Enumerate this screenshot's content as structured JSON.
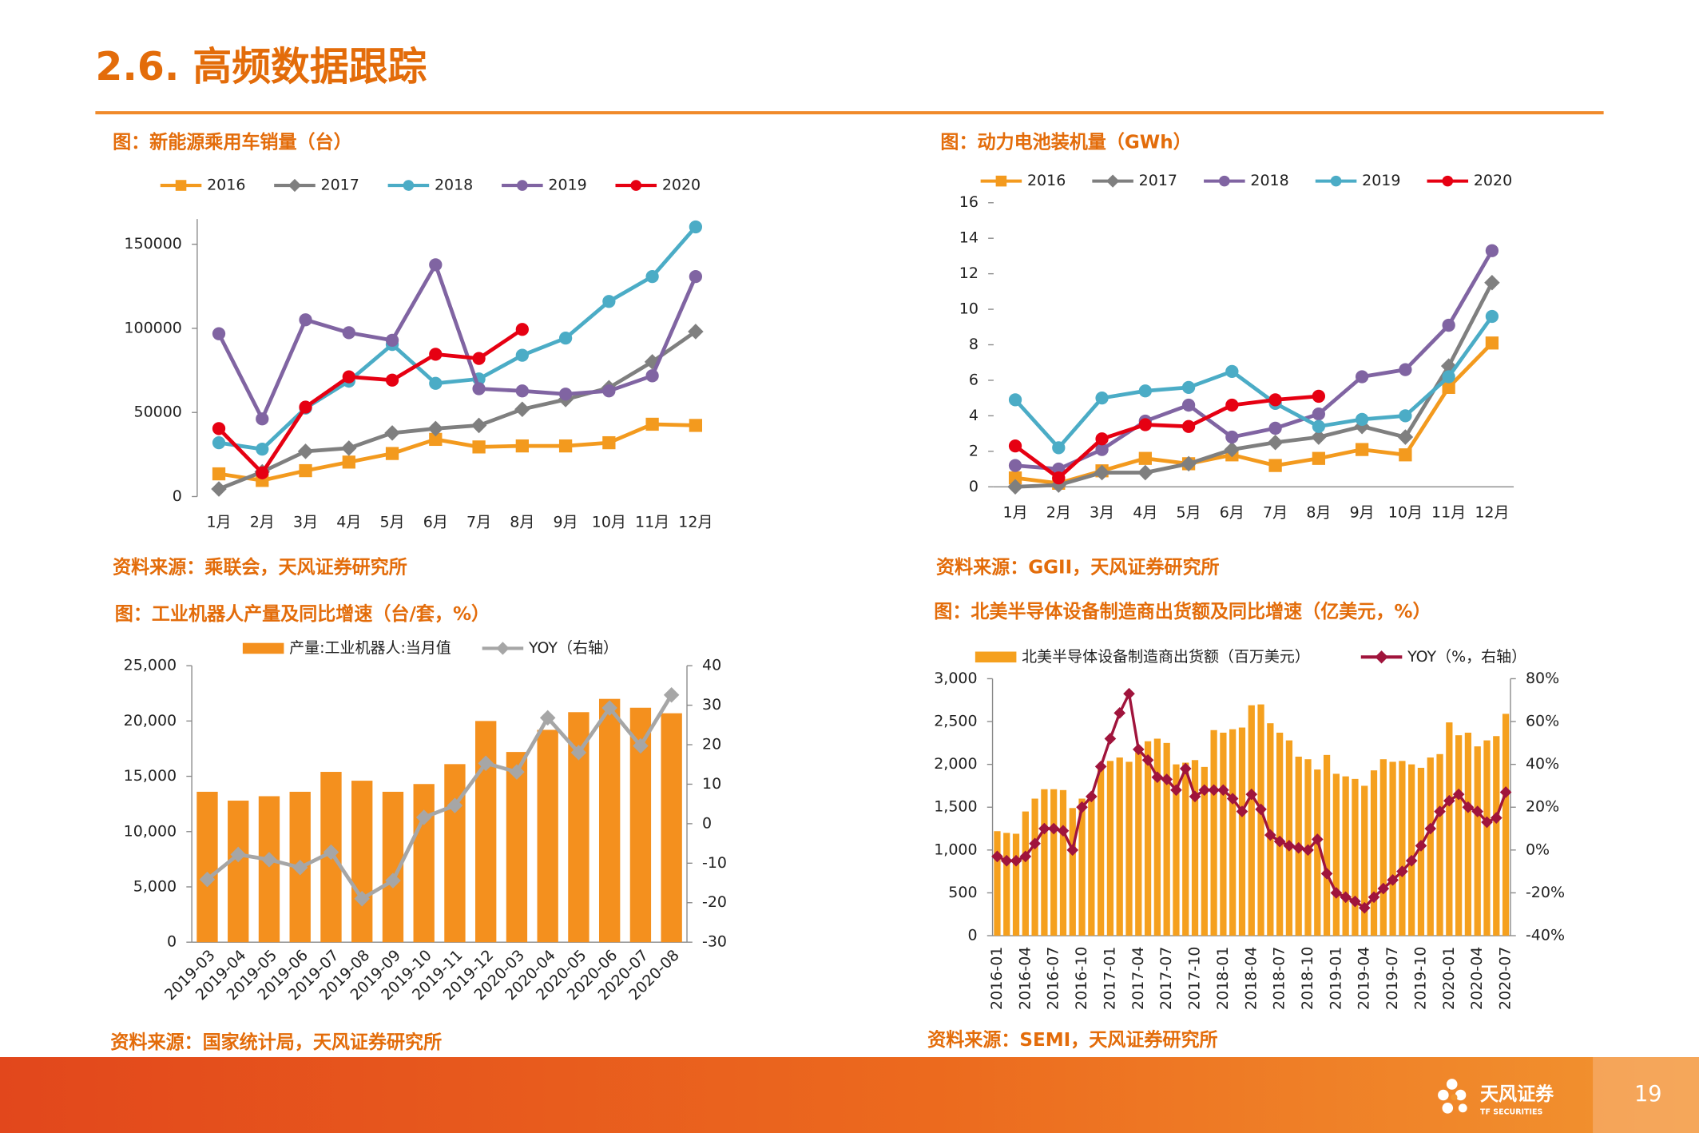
{
  "header": {
    "title": "2.6. 高频数据跟踪"
  },
  "chart_data": [
    {
      "type": "line",
      "title": "图：新能源乘用车销量（台）",
      "source": "资料来源：乘联会，天风证券研究所",
      "categories": [
        "1月",
        "2月",
        "3月",
        "4月",
        "5月",
        "6月",
        "7月",
        "8月",
        "9月",
        "10月",
        "11月",
        "12月"
      ],
      "ylim": [
        0,
        165000
      ],
      "yticks": [
        0,
        50000,
        100000,
        150000
      ],
      "legend": "top",
      "series": [
        {
          "name": "2016",
          "color": "#F39A1E",
          "marker": "square",
          "values": [
            13500,
            9600,
            15400,
            20500,
            25600,
            34000,
            29500,
            30100,
            30100,
            32000,
            43000,
            42300
          ]
        },
        {
          "name": "2017",
          "color": "#7F7F7F",
          "marker": "diamond",
          "values": [
            4500,
            14700,
            26900,
            28800,
            37800,
            40400,
            42300,
            51900,
            57700,
            64700,
            80100,
            98100
          ]
        },
        {
          "name": "2018",
          "color": "#4BACC6",
          "marker": "circle",
          "values": [
            32000,
            28200,
            52600,
            68600,
            90400,
            67300,
            69900,
            84000,
            94200,
            116000,
            130800,
            160300
          ]
        },
        {
          "name": "2019",
          "color": "#8064A2",
          "marker": "circle",
          "values": [
            96800,
            46200,
            105100,
            97400,
            92900,
            137800,
            64100,
            62800,
            60900,
            62800,
            71800,
            130800
          ]
        },
        {
          "name": "2020",
          "color": "#E60012",
          "marker": "circle",
          "values": [
            40400,
            14100,
            53200,
            71200,
            69200,
            84600,
            82100,
            99400,
            null,
            null,
            null,
            null
          ]
        }
      ]
    },
    {
      "type": "line",
      "title": "图：动力电池装机量（GWh）",
      "source": "资料来源：GGII，天风证券研究所",
      "categories": [
        "1月",
        "2月",
        "3月",
        "4月",
        "5月",
        "6月",
        "7月",
        "8月",
        "9月",
        "10月",
        "11月",
        "12月"
      ],
      "ylim": [
        0,
        16
      ],
      "yticks": [
        0,
        2,
        4,
        6,
        8,
        10,
        12,
        14,
        16
      ],
      "legend": "top",
      "series": [
        {
          "name": "2016",
          "color": "#F39A1E",
          "marker": "square",
          "values": [
            0.5,
            0.2,
            0.9,
            1.6,
            1.3,
            1.8,
            1.2,
            1.6,
            2.1,
            1.8,
            5.6,
            8.1
          ]
        },
        {
          "name": "2017",
          "color": "#7F7F7F",
          "marker": "diamond",
          "values": [
            0.0,
            0.1,
            0.8,
            0.8,
            1.3,
            2.1,
            2.5,
            2.8,
            3.4,
            2.8,
            6.8,
            11.5
          ]
        },
        {
          "name": "2018",
          "color": "#8064A2",
          "marker": "circle",
          "values": [
            1.2,
            1.0,
            2.1,
            3.7,
            4.6,
            2.8,
            3.3,
            4.1,
            6.2,
            6.6,
            9.1,
            13.3
          ]
        },
        {
          "name": "2019",
          "color": "#4BACC6",
          "marker": "circle",
          "values": [
            4.9,
            2.2,
            5.0,
            5.4,
            5.6,
            6.5,
            4.7,
            3.4,
            3.8,
            4.0,
            6.2,
            9.6
          ]
        },
        {
          "name": "2020",
          "color": "#E60012",
          "marker": "circle",
          "values": [
            2.3,
            0.5,
            2.7,
            3.5,
            3.4,
            4.6,
            4.9,
            5.1,
            null,
            null,
            null,
            null
          ]
        }
      ]
    },
    {
      "type": "combo",
      "title": "图：工业机器人产量及同比增速（台/套，%）",
      "source": "资料来源：国家统计局，天风证券研究所",
      "categories": [
        "2019-03",
        "2019-04",
        "2019-05",
        "2019-06",
        "2019-07",
        "2019-08",
        "2019-09",
        "2019-10",
        "2019-11",
        "2019-12",
        "2020-03",
        "2020-04",
        "2020-05",
        "2020-06",
        "2020-07",
        "2020-08"
      ],
      "x_label_rotation": -45,
      "ylim": [
        0,
        25000
      ],
      "yticks": [
        0,
        {
          "value": 5000,
          "label": "5,000"
        },
        {
          "value": 10000,
          "label": "10,000"
        },
        {
          "value": 15000,
          "label": "15,000"
        },
        {
          "value": 20000,
          "label": "20,000"
        },
        {
          "value": 25000,
          "label": "25,000"
        }
      ],
      "y2lim": [
        -30,
        40
      ],
      "y2ticks": [
        -30,
        -20,
        -10,
        0,
        10,
        20,
        30,
        40
      ],
      "legend": "top",
      "series": [
        {
          "name": "产量:工业机器人:当月值",
          "type": "bar",
          "color": "#F4901E",
          "values": [
            13600,
            12800,
            13200,
            13600,
            15400,
            14600,
            13600,
            14300,
            16100,
            20000,
            17200,
            19200,
            20800,
            22000,
            21200,
            20700
          ]
        },
        {
          "name": "YOY（右轴）",
          "type": "line",
          "axis": "y2",
          "color": "#A6A6A6",
          "marker": "diamond",
          "values": [
            -14.1,
            -7.8,
            -9.1,
            -11.1,
            -7.2,
            -19.0,
            -14.4,
            1.6,
            4.6,
            15.3,
            13.1,
            26.8,
            18.0,
            29.3,
            19.7,
            32.6
          ]
        }
      ]
    },
    {
      "type": "combo",
      "title": "图：北美半导体设备制造商出货额及同比增速（亿美元，%）",
      "source": "资料来源：SEMI，天风证券研究所",
      "categories": [
        "2016-01",
        null,
        null,
        "2016-04",
        null,
        null,
        "2016-07",
        null,
        null,
        "2016-10",
        null,
        null,
        "2017-01",
        null,
        null,
        "2017-04",
        null,
        null,
        "2017-07",
        null,
        null,
        "2017-10",
        null,
        null,
        "2018-01",
        null,
        null,
        "2018-04",
        null,
        null,
        "2018-07",
        null,
        null,
        "2018-10",
        null,
        null,
        "2019-01",
        null,
        null,
        "2019-04",
        null,
        null,
        "2019-07",
        null,
        null,
        "2019-10",
        null,
        null,
        "2020-01",
        null,
        null,
        "2020-04",
        null,
        null,
        "2020-07"
      ],
      "x_label_rotation": -90,
      "ylim": [
        0,
        3000
      ],
      "yticks": [
        0,
        500,
        {
          "value": 1000,
          "label": "1,000"
        },
        {
          "value": 1500,
          "label": "1,500"
        },
        {
          "value": 2000,
          "label": "2,000"
        },
        {
          "value": 2500,
          "label": "2,500"
        },
        {
          "value": 3000,
          "label": "3,000"
        }
      ],
      "y2lim": [
        -40,
        80
      ],
      "y2ticks": [
        {
          "value": -40,
          "label": "-40%"
        },
        {
          "value": -20,
          "label": "-20%"
        },
        {
          "value": 0,
          "label": "0%"
        },
        {
          "value": 20,
          "label": "20%"
        },
        {
          "value": 40,
          "label": "40%"
        },
        {
          "value": 60,
          "label": "60%"
        },
        {
          "value": 80,
          "label": "80%"
        }
      ],
      "legend": "top",
      "series": [
        {
          "name": "北美半导体设备制造商出货额（百万美元）",
          "type": "bar",
          "color": "#F5A01E",
          "values": [
            1220,
            1200,
            1190,
            1450,
            1600,
            1710,
            1710,
            1700,
            1490,
            1600,
            1640,
            1970,
            2040,
            2080,
            2030,
            2140,
            2270,
            2300,
            2250,
            2000,
            2020,
            2050,
            1970,
            2400,
            2370,
            2410,
            2430,
            2690,
            2700,
            2480,
            2370,
            2280,
            2090,
            2060,
            1940,
            2110,
            1890,
            1860,
            1830,
            1750,
            1930,
            2060,
            2030,
            2040,
            2000,
            1960,
            2080,
            2120,
            2490,
            2340,
            2370,
            2210,
            2280,
            2330,
            2590
          ]
        },
        {
          "name": "YOY（%，右轴）",
          "type": "line",
          "axis": "y2",
          "color": "#A0143C",
          "marker": "diamond",
          "values": [
            -3,
            -5,
            -5,
            -3,
            3,
            10,
            10,
            9,
            0,
            20,
            25,
            39,
            52,
            64,
            73,
            47,
            42,
            34,
            33,
            28,
            38,
            25,
            28,
            28,
            28,
            24,
            18,
            26,
            19,
            7,
            4,
            2,
            1,
            0,
            5,
            -11,
            -20,
            -22,
            -24,
            -27,
            -22,
            -18,
            -14,
            -10,
            -5,
            2,
            10,
            18,
            23,
            26,
            20,
            18,
            13,
            15,
            27
          ]
        }
      ]
    }
  ],
  "footer": {
    "logo": "天风证券",
    "logo_sub": "TF SECURITIES",
    "page": "19"
  }
}
